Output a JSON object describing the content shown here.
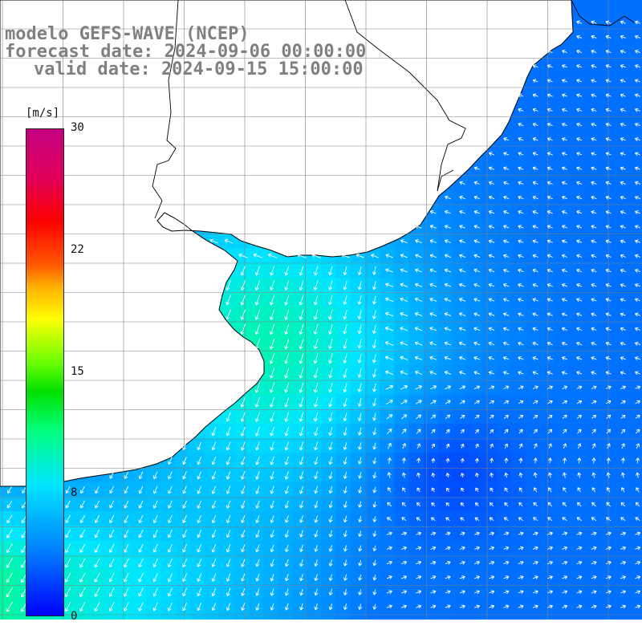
{
  "title": {
    "line1": "modelo GEFS-WAVE (NCEP)",
    "line2": "forecast date: 2024-09-06 00:00:00",
    "line3": "valid date: 2024-09-15 15:00:00"
  },
  "colorbar": {
    "unit": "[m/s]",
    "min": 0,
    "max": 30,
    "ticks": [
      "0",
      "8",
      "15",
      "22",
      "30"
    ],
    "stops": [
      "#0000ff",
      "#007dff",
      "#00e6ff",
      "#00ff7f",
      "#00e000",
      "#6aff00",
      "#ffff00",
      "#ffaa00",
      "#ff5a00",
      "#ff0000",
      "#e0005a",
      "#c40080"
    ]
  },
  "map": {
    "land_color": "#ffffff",
    "coast_color": "#000000",
    "grid_color": "#808080",
    "arrow_color": "#ffffff"
  }
}
